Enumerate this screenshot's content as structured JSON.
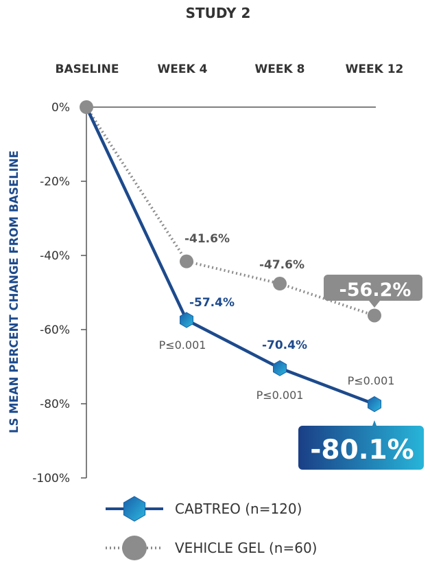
{
  "chart_data": {
    "type": "line",
    "title": "STUDY 2",
    "ylabel": "LS MEAN PERCENT CHANGE FROM BASELINE",
    "xlabel": "",
    "categories": [
      "BASELINE",
      "WEEK 4",
      "WEEK 8",
      "WEEK 12"
    ],
    "y_ticks": [
      "0%",
      "-20%",
      "-40%",
      "-60%",
      "-80%",
      "-100%"
    ],
    "ylim": [
      -100,
      0
    ],
    "grid": false,
    "series": [
      {
        "name": "CABTREO (n=120)",
        "values": [
          0,
          -57.4,
          -70.4,
          -80.1
        ],
        "data_labels": [
          "",
          "-57.4%",
          "-70.4%",
          "-80.1%"
        ],
        "p_values": [
          "",
          "P≤0.001",
          "P≤0.001",
          "P≤0.001"
        ],
        "color": "#1d4a8c",
        "line_style": "solid",
        "marker": "hexagon"
      },
      {
        "name": "VEHICLE GEL (n=60)",
        "values": [
          0,
          -41.6,
          -47.6,
          -56.2
        ],
        "data_labels": [
          "",
          "-41.6%",
          "-47.6%",
          "-56.2%"
        ],
        "color": "#8c8c8c",
        "line_style": "dotted",
        "marker": "circle"
      }
    ],
    "legend_position": "bottom",
    "colors": {
      "cabtreo": "#1d4a8c",
      "cabtreo_gradient_start": "#1a3f86",
      "cabtreo_gradient_end": "#27b5d9",
      "vehicle": "#8c8c8c",
      "axis": "#555555",
      "ylabel": "#1d4a8c"
    }
  }
}
